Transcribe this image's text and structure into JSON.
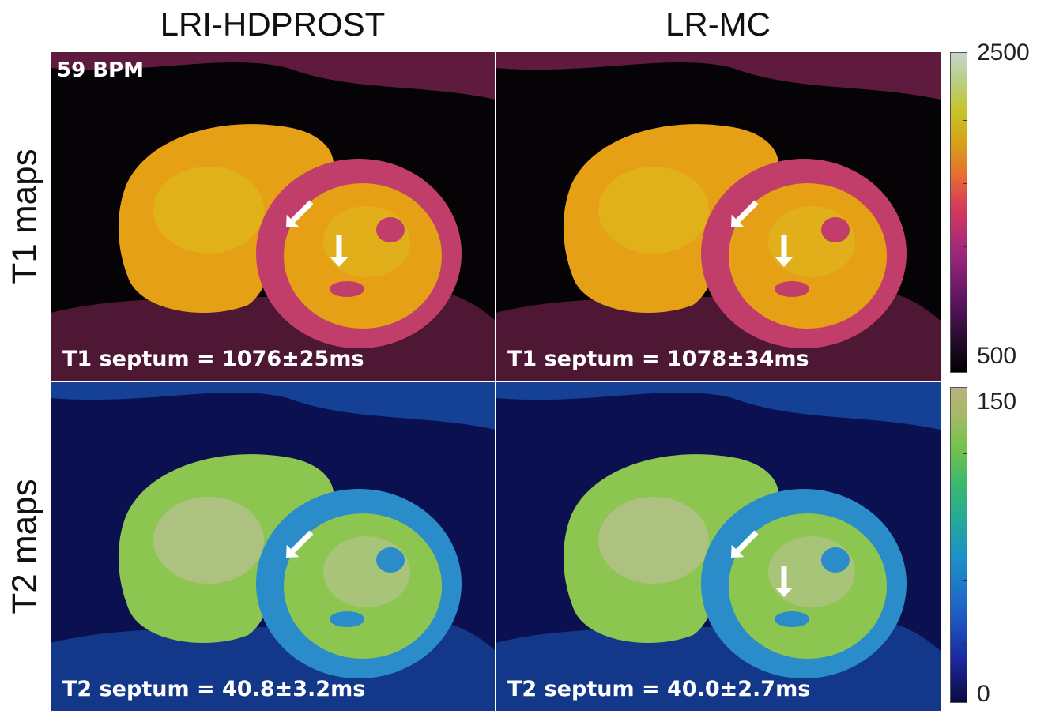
{
  "columns": [
    "LRI-HDPROST",
    "LR-MC"
  ],
  "rows": [
    "T1 maps",
    "T2 maps"
  ],
  "heart_rate_label": "59 BPM",
  "panels": [
    {
      "row": 0,
      "col": 0,
      "label": "T1 septum = 1076±25ms",
      "colormap": "magma",
      "arrows": 2
    },
    {
      "row": 0,
      "col": 1,
      "label": "T1 septum = 1078±34ms",
      "colormap": "magma",
      "arrows": 2
    },
    {
      "row": 1,
      "col": 0,
      "label": "T2 septum = 40.8±3.2ms",
      "colormap": "parula",
      "arrows": 1
    },
    {
      "row": 1,
      "col": 1,
      "label": "T2 septum = 40.0±2.7ms",
      "colormap": "parula",
      "arrows": 2
    }
  ],
  "colorbars": {
    "t1": {
      "max": "2500",
      "min": "500"
    },
    "t2": {
      "max": "150",
      "min": "0"
    }
  },
  "colors": {
    "t1_background": "#050305",
    "t1_body": "#a8306e",
    "t1_myocardium": "#c23e6a",
    "t1_blood": "#e6a016",
    "t1_blood_light": "#dcc01e",
    "t2_background": "#0a1050",
    "t2_body": "#1e6ad0",
    "t2_myocardium": "#2a8cc8",
    "t2_blood": "#8cc650",
    "t2_blood_light": "#c8c0a8",
    "arrow": "#ffffff"
  }
}
